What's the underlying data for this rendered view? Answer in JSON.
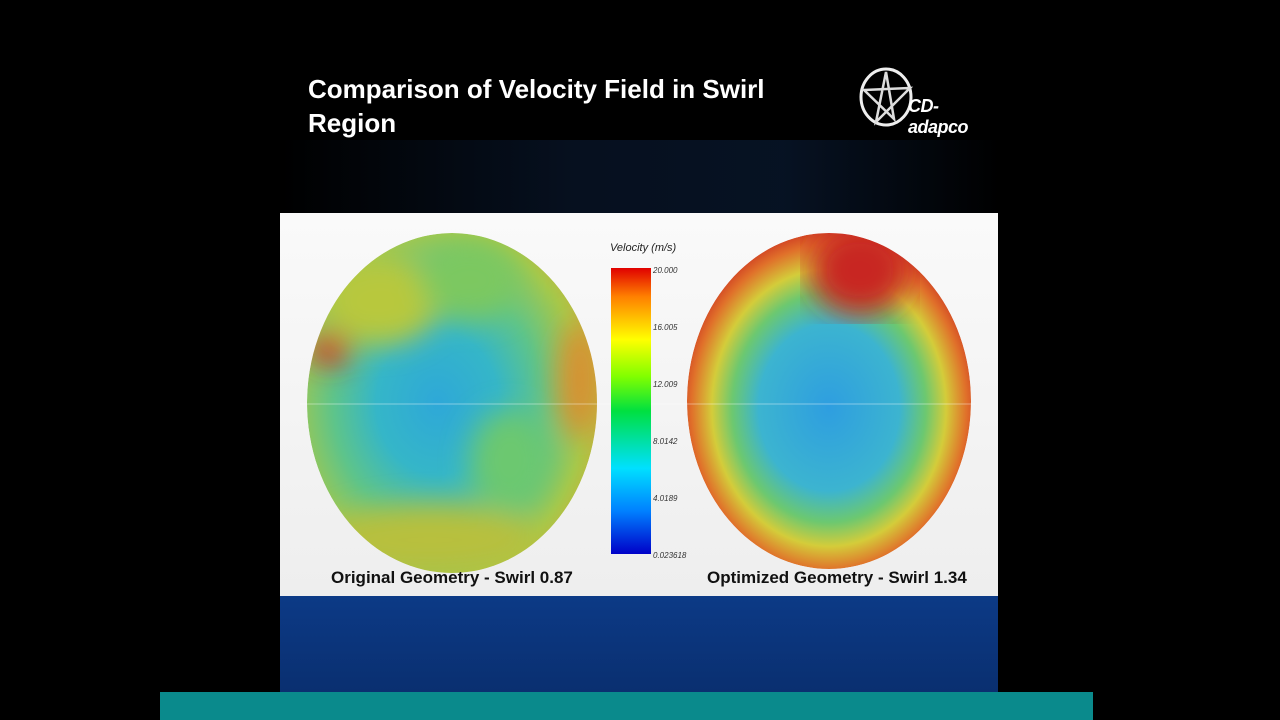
{
  "slide": {
    "title": "Comparison of Velocity Field in Swirl Region",
    "logo_text": "CD-adapco",
    "captions": [
      "Original Geometry - Swirl 0.87",
      "Optimized Geometry - Swirl 1.34"
    ]
  },
  "legend": {
    "title": "Velocity (m/s)",
    "ticks": [
      "20.000",
      "16.005",
      "12.009",
      "8.0142",
      "4.0189",
      "0.023618"
    ],
    "colormap": [
      "#0000c8",
      "#0080ff",
      "#00e0ff",
      "#00e040",
      "#80ff00",
      "#ffff00",
      "#ff8000",
      "#e00000"
    ]
  },
  "colors": {
    "background": "#000000",
    "panel": "#f5f5f5",
    "bottom_band": "#0c3a86",
    "footer_bar": "#0a8a8c"
  }
}
